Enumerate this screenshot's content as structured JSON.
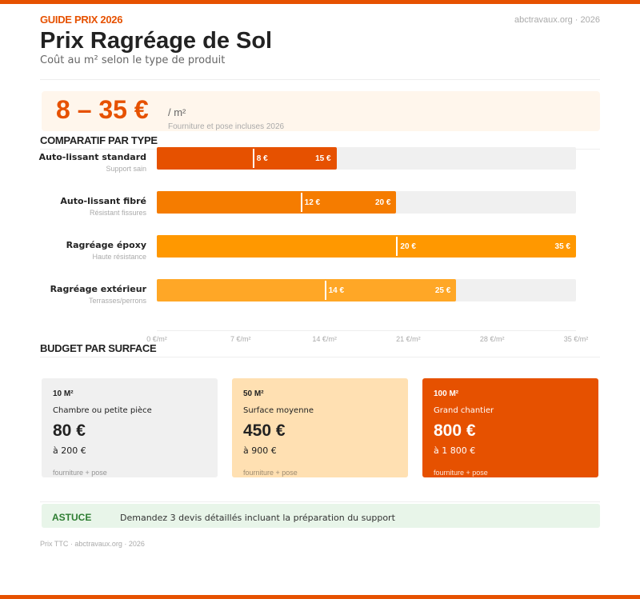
{
  "header": {
    "kicker": "GUIDE PRIX 2026",
    "site": "abctravaux.org · 2026",
    "title": "Prix Ragréage de Sol",
    "subtitle": "Coût au m² selon le type de produit"
  },
  "hero": {
    "range": "8 – 35 €",
    "unit": "/ m²",
    "note": "Fourniture et pose incluses 2026"
  },
  "colors": {
    "accent": "#E65100",
    "tip": "#2E7D32"
  },
  "chart_data": {
    "type": "bar",
    "title": "COMPARATIF PAR TYPE",
    "orientation": "horizontal",
    "xlim": [
      0,
      35
    ],
    "ticks": [
      "0 €/m²",
      "7 €/m²",
      "14 €/m²",
      "21 €/m²",
      "28 €/m²",
      "35 €/m²"
    ],
    "rows": [
      {
        "label": "Auto-lissant standard",
        "sub": "Support sain",
        "min": 8,
        "max": 15,
        "min_label": "8 €",
        "max_label": "15 €",
        "color": "#E65100"
      },
      {
        "label": "Auto-lissant fibré",
        "sub": "Résistant fissures",
        "min": 12,
        "max": 20,
        "min_label": "12 €",
        "max_label": "20 €",
        "color": "#F57C00"
      },
      {
        "label": "Ragréage époxy",
        "sub": "Haute résistance",
        "min": 20,
        "max": 35,
        "min_label": "20 €",
        "max_label": "35 €",
        "color": "#FF9800"
      },
      {
        "label": "Ragréage extérieur",
        "sub": "Terrasses/perrons",
        "min": 14,
        "max": 25,
        "min_label": "14 €",
        "max_label": "25 €",
        "color": "#FFA726"
      }
    ]
  },
  "budget": {
    "title": "BUDGET PAR SURFACE",
    "cards": [
      {
        "size": "10 M²",
        "desc": "Chambre ou petite pièce",
        "price": "80 €",
        "to": "à 200 €",
        "note": "fourniture + pose",
        "bg": "#f0f0f0",
        "fg": "#222"
      },
      {
        "size": "50 M²",
        "desc": "Surface moyenne",
        "price": "450 €",
        "to": "à 900 €",
        "note": "fourniture + pose",
        "bg": "#FFE0B2",
        "fg": "#222"
      },
      {
        "size": "100 M²",
        "desc": "Grand chantier",
        "price": "800 €",
        "to": "à 1 800 €",
        "note": "fourniture + pose",
        "bg": "#E65100",
        "fg": "#fff"
      }
    ]
  },
  "tip": {
    "label": "ASTUCE",
    "text": "Demandez 3 devis détaillés incluant la préparation du support"
  },
  "footer": "Prix TTC · abctravaux.org · 2026"
}
